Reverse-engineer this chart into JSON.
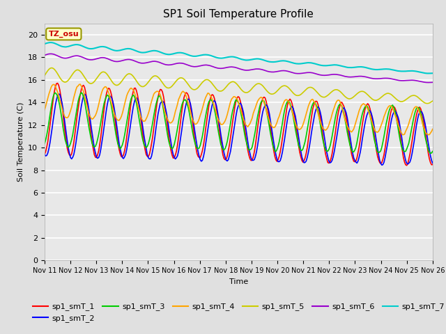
{
  "title": "SP1 Soil Temperature Profile",
  "xlabel": "Time",
  "ylabel": "Soil Temperature (C)",
  "ylim": [
    0,
    21
  ],
  "yticks": [
    0,
    2,
    4,
    6,
    8,
    10,
    12,
    14,
    16,
    18,
    20
  ],
  "x_labels": [
    "Nov 11",
    "Nov 12",
    "Nov 13",
    "Nov 14",
    "Nov 15",
    "Nov 16",
    "Nov 17",
    "Nov 18",
    "Nov 19",
    "Nov 20",
    "Nov 21",
    "Nov 22",
    "Nov 23",
    "Nov 24",
    "Nov 25",
    "Nov 26"
  ],
  "tz_label": "TZ_osu",
  "colors": {
    "sp1_smT_1": "#FF0000",
    "sp1_smT_2": "#0000FF",
    "sp1_smT_3": "#00CC00",
    "sp1_smT_4": "#FFA500",
    "sp1_smT_5": "#CCCC00",
    "sp1_smT_6": "#9900CC",
    "sp1_smT_7": "#00CCCC"
  },
  "fig_facecolor": "#E0E0E0",
  "ax_facecolor": "#E8E8E8",
  "grid_color": "#FFFFFF",
  "legend_ncol": 6,
  "n_days": 15,
  "n_points": 360
}
